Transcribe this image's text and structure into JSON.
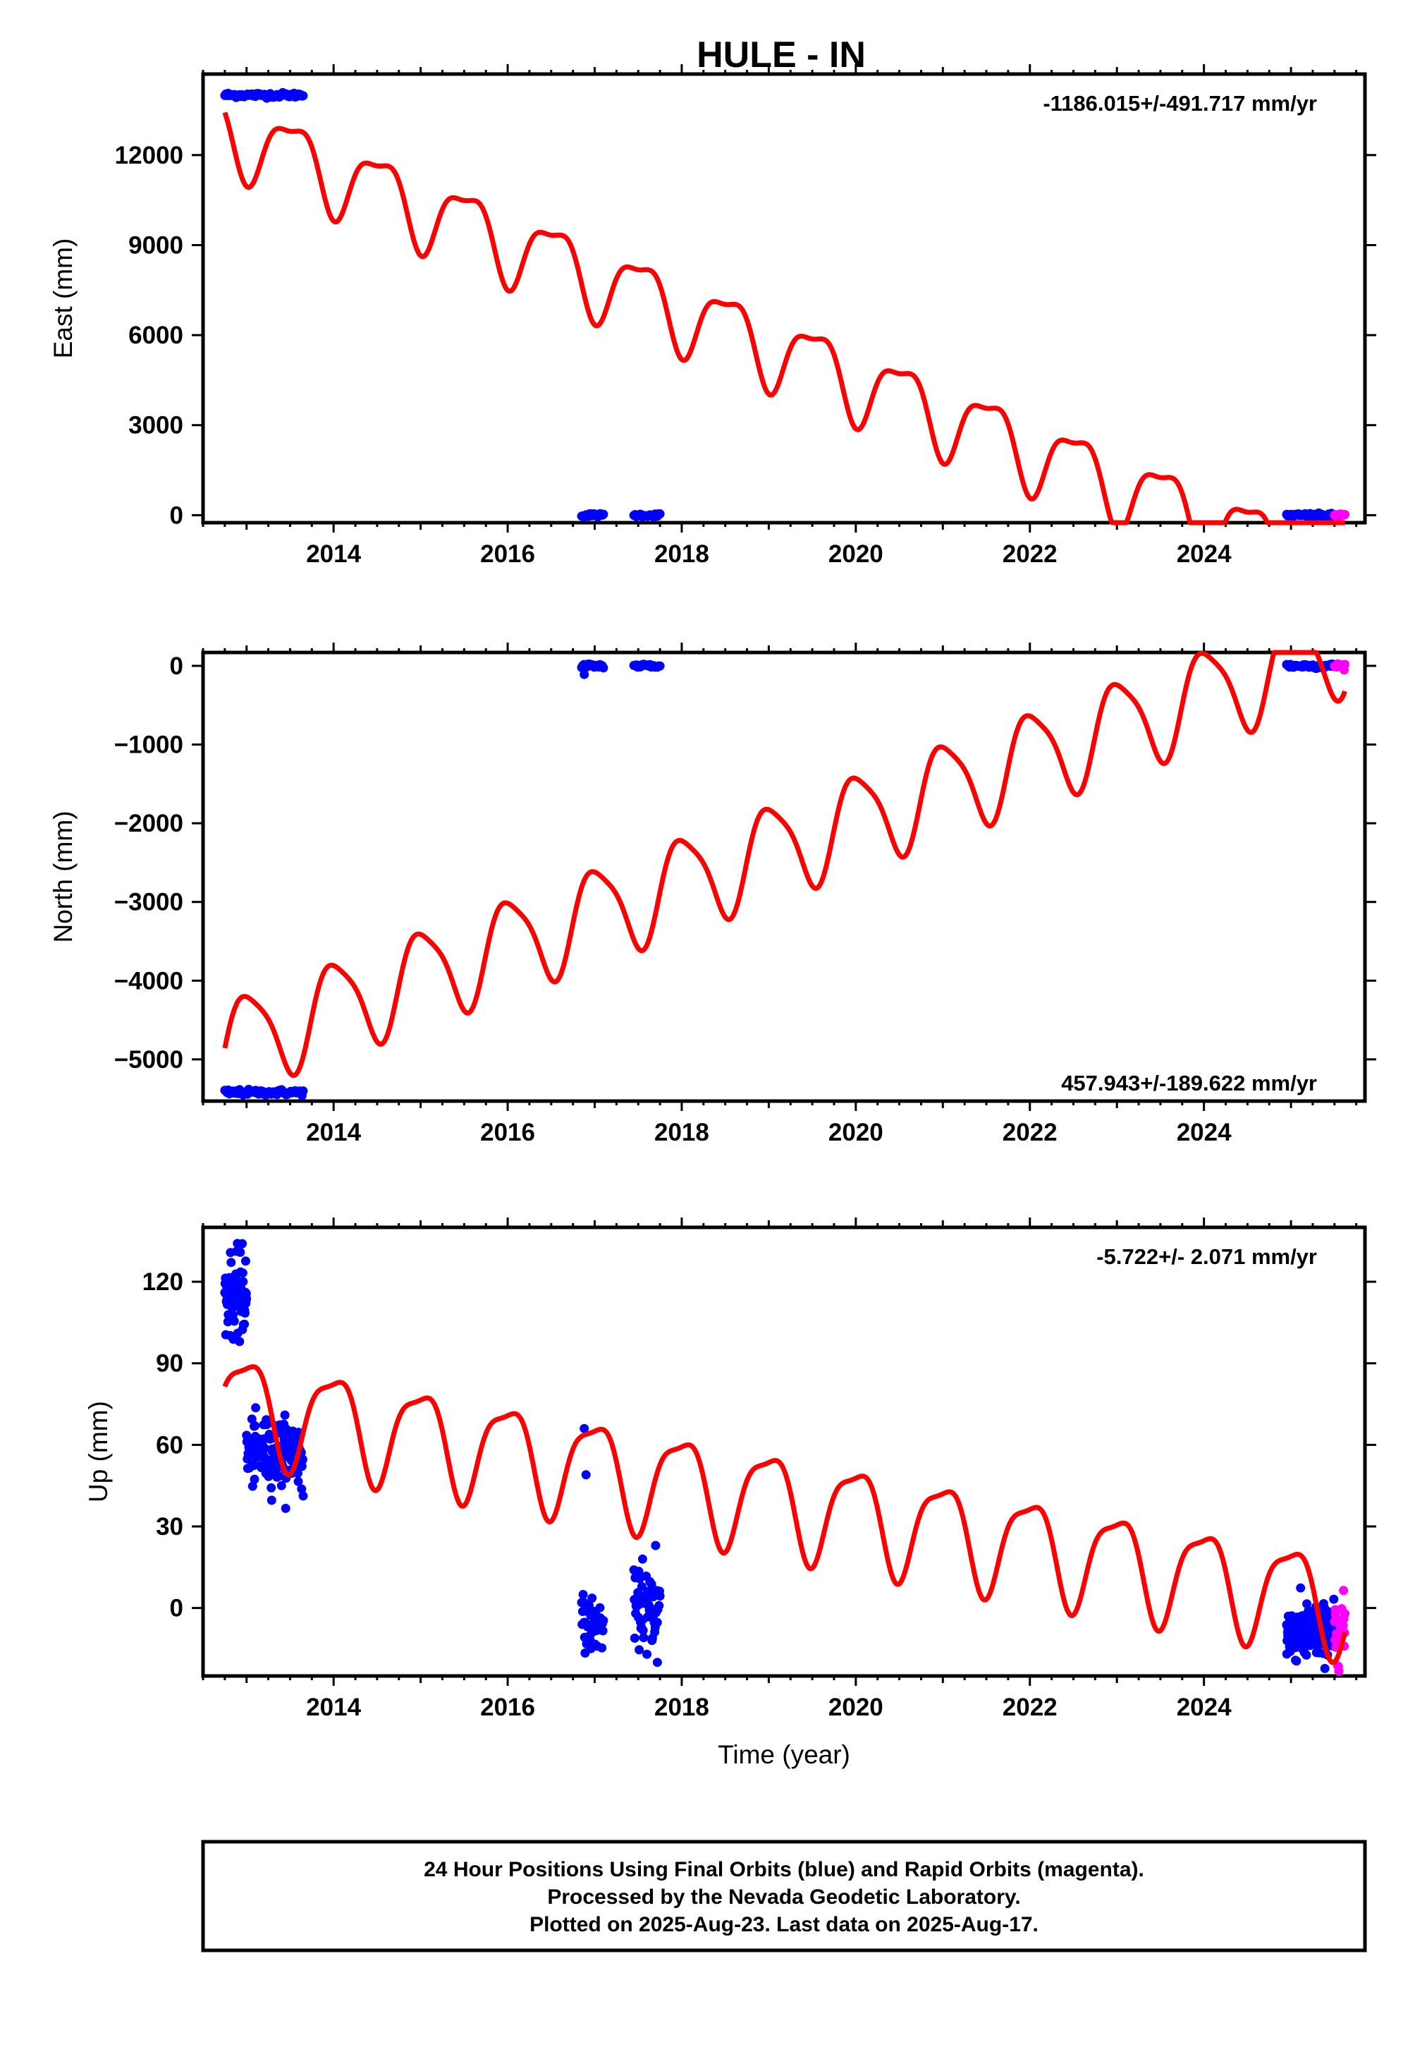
{
  "figure": {
    "title": "HULE - IN",
    "xlabel": "Time (year)",
    "note_lines": [
      "24 Hour Positions Using Final Orbits (blue) and Rapid Orbits (magenta).",
      "Processed by the Nevada Geodetic Laboratory.",
      "Plotted on 2025-Aug-23. Last data on 2025-Aug-17."
    ],
    "colors": {
      "final": "#0000ff",
      "rapid": "#ff00ff",
      "fit": "#ff0000"
    }
  },
  "chart_data": [
    {
      "type": "scatter",
      "ylabel": "East (mm)",
      "rate": "-1186.015+/-491.717 mm/yr",
      "xlim": [
        2012.5,
        2025.85
      ],
      "ylim": [
        -250,
        14700
      ],
      "xticks": [
        2014,
        2016,
        2018,
        2020,
        2022,
        2024
      ],
      "yticks": [
        0,
        3000,
        6000,
        9000,
        12000
      ],
      "series": [
        {
          "kind": "final",
          "clusters": [
            {
              "x": [
                2012.75,
                2013.65
              ],
              "y": 14000,
              "spread": 40,
              "n": 70
            },
            {
              "x": [
                2016.85,
                2017.1
              ],
              "y": 0,
              "spread": 30,
              "n": 20
            },
            {
              "x": [
                2017.45,
                2017.75
              ],
              "y": 0,
              "spread": 30,
              "n": 22
            },
            {
              "x": [
                2024.95,
                2025.5
              ],
              "y": 0,
              "spread": 30,
              "n": 50
            }
          ]
        },
        {
          "kind": "rapid",
          "clusters": [
            {
              "x": [
                2025.5,
                2025.62
              ],
              "y": 0,
              "spread": 30,
              "n": 14
            }
          ]
        }
      ],
      "fit": {
        "x0": 2012.75,
        "y0": 12850,
        "x1": 2025.62,
        "y1": -2000,
        "amp": 1220,
        "phase": 3.0,
        "amp2": 400,
        "phase2": 1.5
      }
    },
    {
      "type": "scatter",
      "ylabel": "North (mm)",
      "rate": "457.943+/-189.622 mm/yr",
      "xlim": [
        2012.5,
        2025.85
      ],
      "ylim": [
        -5530,
        170
      ],
      "xticks": [
        2014,
        2016,
        2018,
        2020,
        2022,
        2024
      ],
      "yticks": [
        0,
        -1000,
        -2000,
        -3000,
        -4000,
        -5000
      ],
      "series": [
        {
          "kind": "final",
          "clusters": [
            {
              "x": [
                2012.75,
                2013.65
              ],
              "y": -5420,
              "spread": 18,
              "n": 70
            },
            {
              "x": [
                2016.85,
                2017.1
              ],
              "y": 0,
              "spread": 15,
              "n": 20
            },
            {
              "x": [
                2017.45,
                2017.75
              ],
              "y": 0,
              "spread": 15,
              "n": 22
            },
            {
              "x": [
                2024.95,
                2025.5
              ],
              "y": 0,
              "spread": 15,
              "n": 50
            }
          ]
        },
        {
          "kind": "rapid",
          "clusters": [
            {
              "x": [
                2025.5,
                2025.62
              ],
              "y": 0,
              "spread": 15,
              "n": 14
            }
          ]
        }
      ],
      "extra_points": [
        [
          2016.88,
          -110
        ]
      ],
      "fit": {
        "x0": 2012.75,
        "y0": -4830,
        "x1": 2025.62,
        "y1": 270,
        "amp": 590,
        "phase": 6.14,
        "amp2": 120,
        "phase2": 0.5
      }
    },
    {
      "type": "scatter",
      "ylabel": "Up (mm)",
      "rate": "-5.722+/- 2.071 mm/yr",
      "xlim": [
        2012.5,
        2025.85
      ],
      "ylim": [
        -25,
        140
      ],
      "xticks": [
        2014,
        2016,
        2018,
        2020,
        2022,
        2024
      ],
      "yticks": [
        0,
        30,
        60,
        90,
        120
      ],
      "series": [
        {
          "kind": "final",
          "clusters": [
            {
              "x": [
                2012.75,
                2013.0
              ],
              "y": 115,
              "spread": 7,
              "n": 70
            },
            {
              "x": [
                2013.0,
                2013.65
              ],
              "y": 57,
              "spread": 6,
              "n": 150
            },
            {
              "x": [
                2016.85,
                2017.1
              ],
              "y": -6,
              "spread": 5,
              "n": 45
            },
            {
              "x": [
                2017.45,
                2017.75
              ],
              "y": 0,
              "spread": 6,
              "n": 60
            },
            {
              "x": [
                2024.95,
                2025.5
              ],
              "y": -9,
              "spread": 5,
              "n": 200
            }
          ]
        },
        {
          "kind": "rapid",
          "clusters": [
            {
              "x": [
                2025.5,
                2025.62
              ],
              "y": -8,
              "spread": 6,
              "n": 30
            }
          ]
        }
      ],
      "extra_points": [
        [
          2016.88,
          66
        ],
        [
          2016.9,
          49
        ],
        [
          2012.95,
          134
        ],
        [
          2012.92,
          98
        ],
        [
          2017.7,
          23
        ],
        [
          2017.72,
          -20
        ],
        [
          2017.55,
          18
        ],
        [
          2017.6,
          -17
        ]
      ],
      "fit": {
        "x0": 2012.75,
        "y0": 76,
        "x1": 2025.62,
        "y1": 2,
        "amp": 18,
        "phase": 0.05,
        "amp2": 5,
        "phase2": 2.0
      }
    }
  ]
}
